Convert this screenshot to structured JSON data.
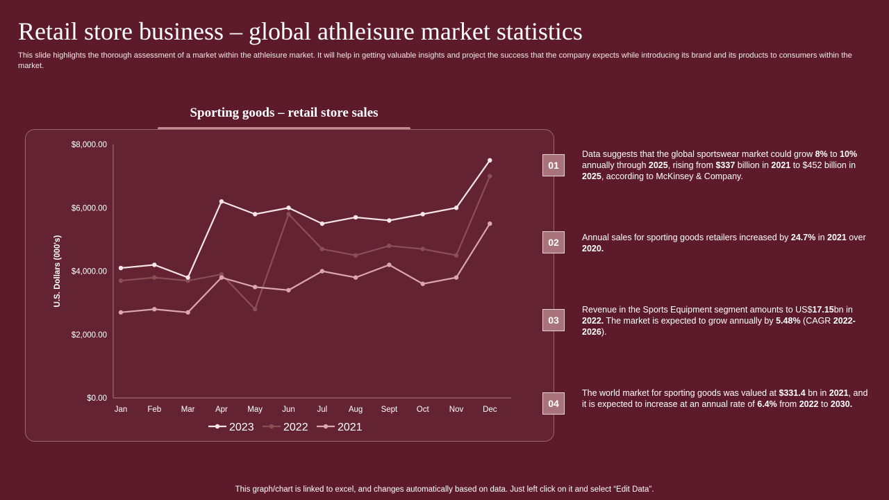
{
  "header": {
    "title": "Retail store business – global athleisure market statistics",
    "subtitle": "This slide highlights the thorough assessment of a market within the athleisure market. It will help in getting valuable insights and project the success that the company expects while introducing its brand and its products to consumers within the market."
  },
  "colors": {
    "background": "#5c1a2a",
    "panel": "#632333",
    "series_2023": "#f7e6e9",
    "series_2022": "#8a4e55",
    "series_2021": "#d9a7ad"
  },
  "chart_data": {
    "type": "line",
    "title": "Sporting goods – retail store sales",
    "ylabel": "U.S. Dollars (000's)",
    "xlabel": "",
    "categories": [
      "Jan",
      "Feb",
      "Mar",
      "Apr",
      "May",
      "Jun",
      "Jul",
      "Aug",
      "Sept",
      "Oct",
      "Nov",
      "Dec"
    ],
    "ylim": [
      0,
      8000
    ],
    "yticks": [
      0,
      2000,
      4000,
      6000,
      8000
    ],
    "ytick_labels": [
      "$0.00",
      "$2,000.00",
      "$4,000.00",
      "$6,000.00",
      "$8,000.00"
    ],
    "grid": false,
    "legend_position": "bottom",
    "series": [
      {
        "name": "2023",
        "color": "#f7e6e9",
        "values": [
          4100,
          4200,
          3800,
          6200,
          5800,
          6000,
          5500,
          5700,
          5600,
          5800,
          6000,
          7500
        ]
      },
      {
        "name": "2022",
        "color": "#8a4e55",
        "values": [
          3700,
          3800,
          3700,
          3900,
          2800,
          5800,
          4700,
          4500,
          4800,
          4700,
          4500,
          7000
        ]
      },
      {
        "name": "2021",
        "color": "#d9a7ad",
        "values": [
          2700,
          2800,
          2700,
          3800,
          3500,
          3400,
          4000,
          3800,
          4200,
          3600,
          3800,
          5500
        ]
      }
    ]
  },
  "points": [
    {
      "number": "01",
      "html": "Data suggests that the global sportswear market could grow <b>8%</b> to <b>10%</b> annually through <b>2025</b>, rising from <b>$337</b> billion in <b>2021</b> to $452 billion in <b>2025</b>, according to McKinsey &amp; Company."
    },
    {
      "number": "02",
      "html": "Annual sales for sporting goods retailers increased by <b>24.7%</b> in <b>2021</b> over <b>2020.</b>"
    },
    {
      "number": "03",
      "html": "Revenue  in the Sports Equipment segment amounts to US$<b>17.15</b>bn in <b>2022.</b> The market is expected to grow annually by <b>5.48%</b> (CAGR <b>2022-2026</b>)."
    },
    {
      "number": "04",
      "html": "The world market for sporting goods was valued  at <b>$331.4</b> bn in <b>2021</b>, and it is expected to increase at an annual rate of <b>6.4%</b> from <b>2022</b> to <b>2030.</b>"
    }
  ],
  "footer": "This graph/chart is linked to excel, and changes automatically based on data. Just left click on it and select “Edit Data”."
}
